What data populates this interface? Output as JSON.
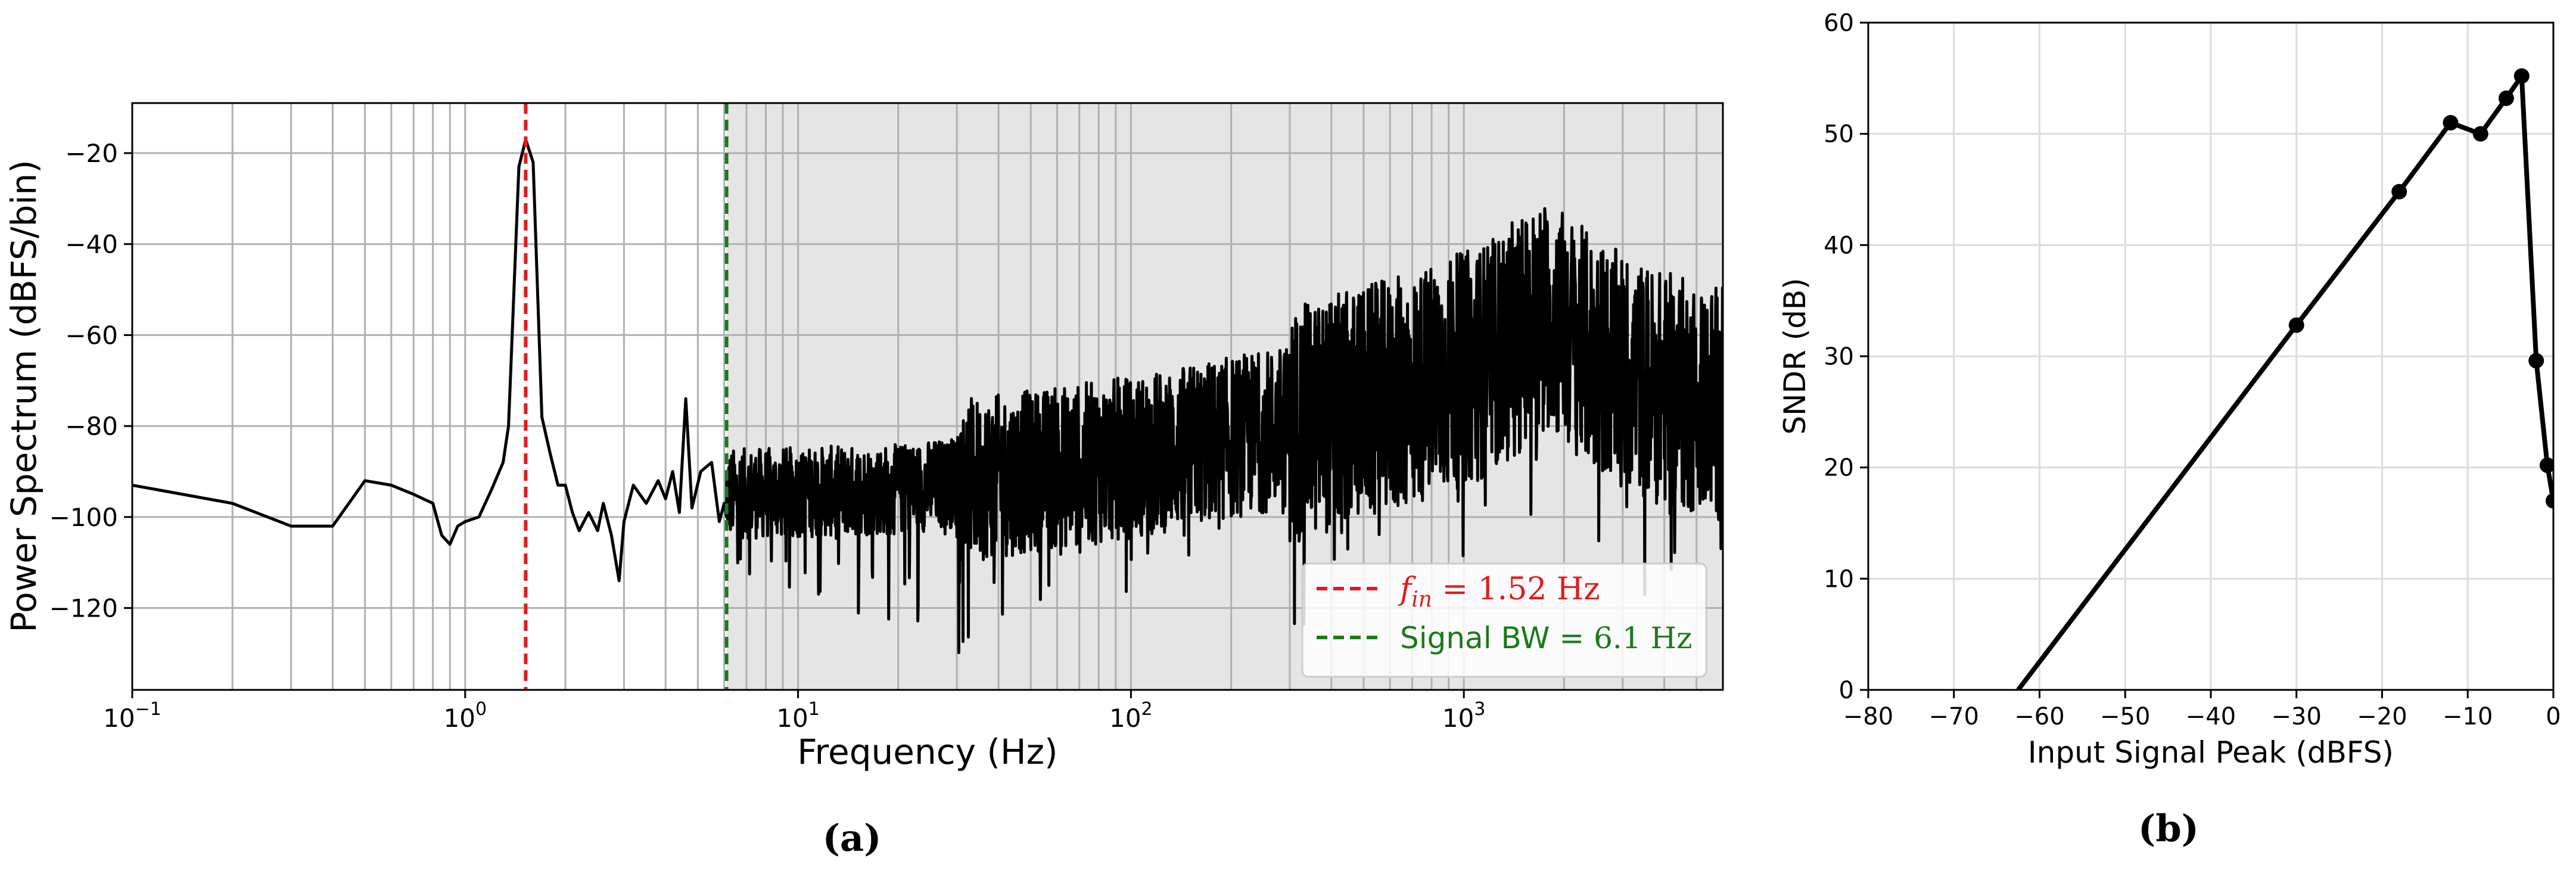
{
  "chart_data": [
    {
      "type": "line",
      "panel_label": "(a)",
      "xlabel": "Frequency (Hz)",
      "ylabel": "Power Spectrum (dBFS/bin)",
      "xscale": "log",
      "xlim": [
        0.1,
        6000
      ],
      "ylim": [
        -138,
        -9
      ],
      "xtick_labels": [
        {
          "value": 0.1,
          "base": "10",
          "exp": "−1"
        },
        {
          "value": 1,
          "base": "10",
          "exp": "0"
        },
        {
          "value": 10,
          "base": "10",
          "exp": "1"
        },
        {
          "value": 100,
          "base": "10",
          "exp": "2"
        },
        {
          "value": 1000,
          "base": "10",
          "exp": "3"
        }
      ],
      "yticks": [
        -120,
        -100,
        -80,
        -60,
        -40,
        -20
      ],
      "ytick_labels": [
        "−120",
        "−100",
        "−80",
        "−60",
        "−40",
        "−20"
      ],
      "grid": true,
      "shaded_region": {
        "x_from": 6.1,
        "x_to": 6000,
        "color": "#e5e5e5"
      },
      "series": [
        {
          "color": "#000000",
          "low_freq_points": [
            [
              0.1,
              -93
            ],
            [
              0.2,
              -97
            ],
            [
              0.3,
              -102
            ],
            [
              0.4,
              -102
            ],
            [
              0.5,
              -92
            ],
            [
              0.6,
              -93
            ],
            [
              0.7,
              -95
            ],
            [
              0.8,
              -97
            ],
            [
              0.85,
              -104
            ],
            [
              0.9,
              -106
            ],
            [
              0.95,
              -102
            ],
            [
              1.0,
              -101
            ],
            [
              1.1,
              -100
            ],
            [
              1.2,
              -94
            ],
            [
              1.3,
              -88
            ],
            [
              1.35,
              -80
            ],
            [
              1.45,
              -23
            ],
            [
              1.52,
              -17
            ],
            [
              1.6,
              -22
            ],
            [
              1.7,
              -78
            ],
            [
              1.8,
              -86
            ],
            [
              1.9,
              -93
            ],
            [
              2.0,
              -93
            ],
            [
              2.1,
              -99
            ],
            [
              2.2,
              -103
            ],
            [
              2.35,
              -99
            ],
            [
              2.5,
              -103
            ],
            [
              2.6,
              -97
            ],
            [
              2.75,
              -104
            ],
            [
              2.9,
              -114
            ],
            [
              3.0,
              -101
            ],
            [
              3.2,
              -93
            ],
            [
              3.5,
              -97
            ],
            [
              3.8,
              -92
            ],
            [
              4.0,
              -96
            ],
            [
              4.2,
              -90
            ],
            [
              4.4,
              -99
            ],
            [
              4.6,
              -74
            ],
            [
              4.8,
              -98
            ],
            [
              5.1,
              -90
            ],
            [
              5.5,
              -88
            ],
            [
              5.8,
              -101
            ],
            [
              6.0,
              -97
            ],
            [
              6.1,
              -100
            ]
          ],
          "trend_points": [
            [
              6,
              -95
            ],
            [
              20,
              -94
            ],
            [
              50,
              -90
            ],
            [
              100,
              -87
            ],
            [
              300,
              -80
            ],
            [
              700,
              -72
            ],
            [
              1200,
              -65
            ],
            [
              1800,
              -55
            ],
            [
              2500,
              -65
            ],
            [
              4000,
              -72
            ],
            [
              6000,
              -75
            ]
          ]
        }
      ],
      "vlines": [
        {
          "x": 1.52,
          "color": "#e41a1c",
          "style": "dashed"
        },
        {
          "x": 6.1,
          "color": "#1a7a1a",
          "style": "dashed"
        }
      ],
      "legend": {
        "placement": "lower-right",
        "entries": [
          {
            "pre": "f",
            "sub": "in",
            "post": " = 1.52 Hz",
            "color": "#e41a1c"
          },
          {
            "pre": "Signal BW = ",
            "math": "6.1 Hz",
            "color": "#1a7a1a"
          }
        ]
      }
    },
    {
      "type": "line",
      "panel_label": "(b)",
      "xlabel": "Input Signal Peak (dBFS)",
      "ylabel": "SNDR (dB)",
      "xlim": [
        -80,
        0
      ],
      "ylim": [
        0,
        60
      ],
      "xticks": [
        -80,
        -70,
        -60,
        -50,
        -40,
        -30,
        -20,
        -10,
        0
      ],
      "xtick_labels": [
        "−80",
        "−70",
        "−60",
        "−50",
        "−40",
        "−30",
        "−20",
        "−10",
        "0"
      ],
      "yticks": [
        0,
        10,
        20,
        30,
        40,
        50,
        60
      ],
      "ytick_labels": [
        "0",
        "10",
        "20",
        "30",
        "40",
        "50",
        "60"
      ],
      "grid": true,
      "series": [
        {
          "color": "#000000",
          "line_points": [
            [
              -62.5,
              0
            ],
            [
              -30,
              32.8
            ],
            [
              -18,
              44.8
            ],
            [
              -12,
              51
            ],
            [
              -8.5,
              50
            ],
            [
              -5.5,
              53.2
            ],
            [
              -3.7,
              55.2
            ],
            [
              -2,
              29.6
            ],
            [
              -0.7,
              20.2
            ],
            [
              0,
              17
            ]
          ],
          "markers": [
            [
              -30,
              32.8
            ],
            [
              -18,
              44.8
            ],
            [
              -12,
              51
            ],
            [
              -8.5,
              50
            ],
            [
              -5.5,
              53.2
            ],
            [
              -3.7,
              55.2
            ],
            [
              -2,
              29.6
            ],
            [
              -0.7,
              20.2
            ],
            [
              0,
              17
            ]
          ]
        }
      ]
    }
  ]
}
